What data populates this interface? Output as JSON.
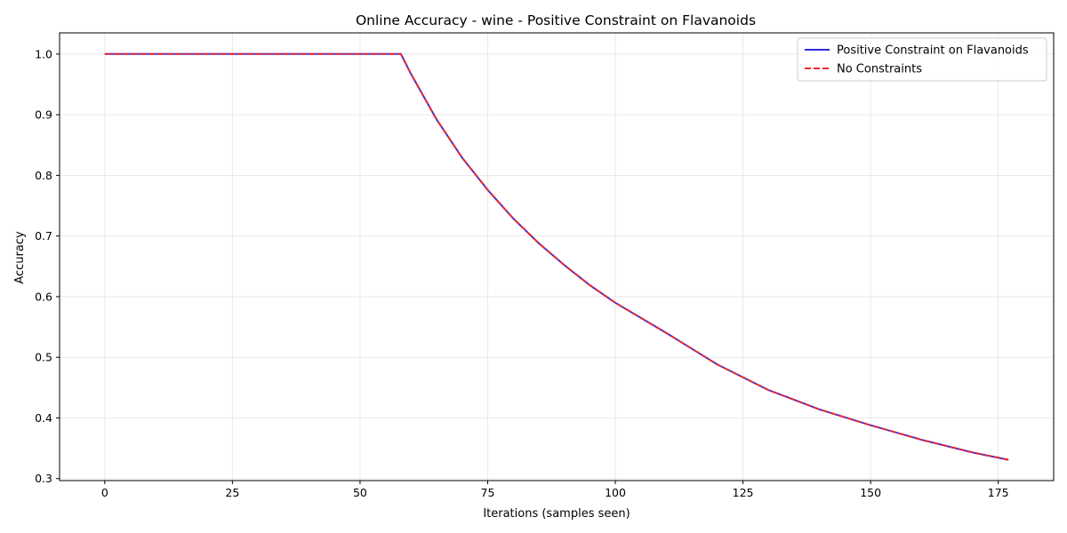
{
  "chart_data": {
    "type": "line",
    "title": "Online Accuracy - wine - Positive Constraint on Flavanoids",
    "xlabel": "Iterations (samples seen)",
    "ylabel": "Accuracy",
    "xlim": [
      -8.85,
      185.85
    ],
    "ylim": [
      0.2967,
      1.0349
    ],
    "xticks": [
      0,
      25,
      50,
      75,
      100,
      125,
      150,
      175
    ],
    "yticks": [
      0.3,
      0.4,
      0.5,
      0.6,
      0.7,
      0.8,
      0.9,
      1.0
    ],
    "xtick_labels": [
      "0",
      "25",
      "50",
      "75",
      "100",
      "125",
      "150",
      "175"
    ],
    "ytick_labels": [
      "0.3",
      "0.4",
      "0.5",
      "0.6",
      "0.7",
      "0.8",
      "0.9",
      "1.0"
    ],
    "grid": true,
    "legend_position": "top-right",
    "series": [
      {
        "name": "Positive Constraint on Flavanoids",
        "color": "#2b2bdb",
        "style": "solid",
        "x": [
          0,
          58,
          60,
          65,
          70,
          75,
          80,
          85,
          90,
          95,
          100,
          110,
          120,
          130,
          140,
          150,
          160,
          170,
          177
        ],
        "y": [
          1.0,
          1.0,
          0.967,
          0.892,
          0.829,
          0.776,
          0.729,
          0.688,
          0.652,
          0.619,
          0.59,
          0.54,
          0.488,
          0.446,
          0.414,
          0.388,
          0.364,
          0.343,
          0.331
        ]
      },
      {
        "name": "No Constraints",
        "color": "#f0282d",
        "style": "dashed",
        "x": [
          0,
          58,
          60,
          65,
          70,
          75,
          80,
          85,
          90,
          95,
          100,
          110,
          120,
          130,
          140,
          150,
          160,
          170,
          177
        ],
        "y": [
          1.0,
          1.0,
          0.967,
          0.892,
          0.829,
          0.776,
          0.729,
          0.688,
          0.652,
          0.619,
          0.59,
          0.54,
          0.488,
          0.446,
          0.414,
          0.388,
          0.364,
          0.343,
          0.331
        ]
      }
    ]
  }
}
